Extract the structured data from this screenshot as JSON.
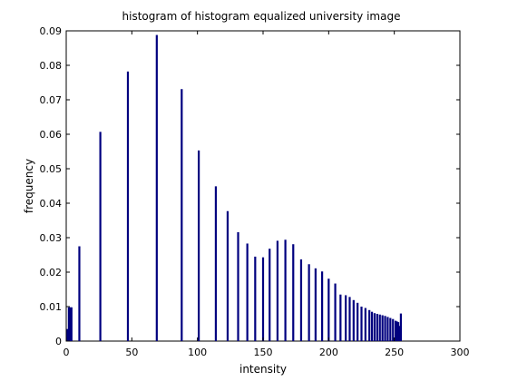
{
  "chart_data": {
    "type": "bar",
    "title": "histogram of histogram equalized university image",
    "xlabel": "intensity",
    "ylabel": "frequency",
    "xlim": [
      0,
      300
    ],
    "ylim": [
      0,
      0.09
    ],
    "xticks": [
      0,
      50,
      100,
      150,
      200,
      250,
      300
    ],
    "yticks": [
      0,
      0.01,
      0.02,
      0.03,
      0.04,
      0.05,
      0.06,
      0.07,
      0.08,
      0.09
    ],
    "grid": false,
    "bar_color": "#00007f",
    "x": [
      1,
      2,
      3,
      4,
      10,
      26,
      47,
      69,
      88,
      101,
      114,
      123,
      131,
      138,
      144,
      150,
      155,
      161,
      167,
      173,
      179,
      185,
      190,
      195,
      200,
      205,
      209,
      213,
      216,
      219,
      222,
      225,
      228,
      231,
      233,
      235,
      237,
      239,
      241,
      243,
      245,
      247,
      249,
      251,
      252,
      253,
      254,
      255
    ],
    "values": [
      0.0035,
      0.0098,
      0.0098,
      0.0098,
      0.0275,
      0.0607,
      0.0782,
      0.0888,
      0.0731,
      0.0553,
      0.0449,
      0.0377,
      0.0316,
      0.0283,
      0.0245,
      0.0243,
      0.0268,
      0.0291,
      0.0294,
      0.0281,
      0.0237,
      0.0223,
      0.0211,
      0.0202,
      0.0181,
      0.0167,
      0.0135,
      0.0133,
      0.0128,
      0.0119,
      0.0111,
      0.01,
      0.0096,
      0.009,
      0.0085,
      0.0081,
      0.0079,
      0.0077,
      0.0075,
      0.0073,
      0.007,
      0.0067,
      0.0064,
      0.0059,
      0.0057,
      0.0055,
      0.0044,
      0.008
    ]
  }
}
